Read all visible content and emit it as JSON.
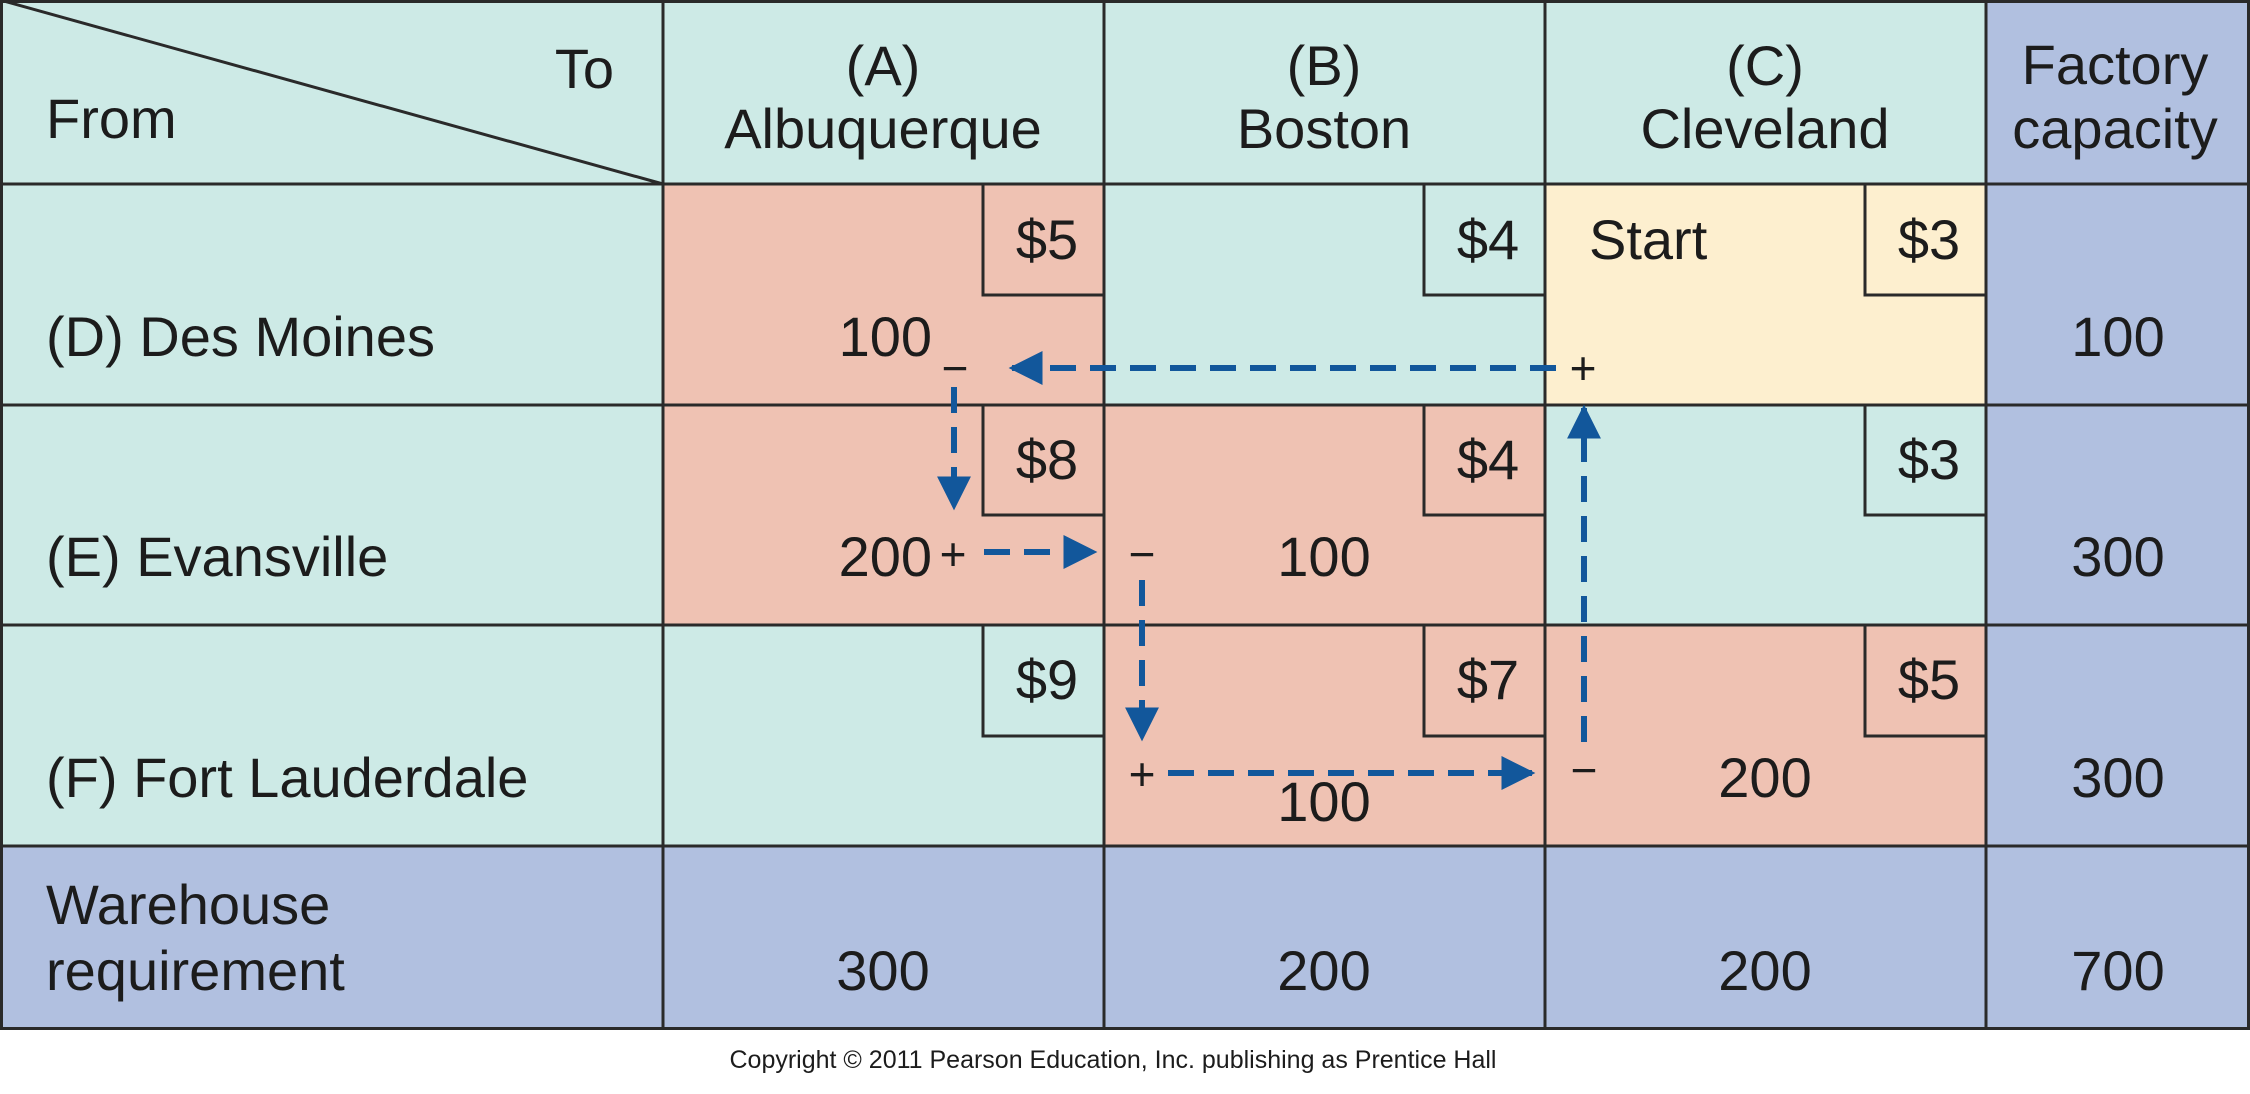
{
  "header": {
    "corner_to": "To",
    "corner_from": "From",
    "capacity_label": [
      "Factory",
      "capacity"
    ]
  },
  "columns": [
    {
      "code": "(A)",
      "name": "Albuquerque"
    },
    {
      "code": "(B)",
      "name": "Boston"
    },
    {
      "code": "(C)",
      "name": "Cleveland"
    }
  ],
  "rows": [
    {
      "label": "(D) Des Moines",
      "capacity": "100",
      "cells": [
        {
          "cost": "$5",
          "amount": "100",
          "sign": "−",
          "fill": "#efc2b3"
        },
        {
          "cost": "$4",
          "amount": "",
          "sign": "",
          "fill": "#cdeae6"
        },
        {
          "cost": "$3",
          "amount": "",
          "sign": "+",
          "fill": "#fdefcf",
          "note": "Start"
        }
      ]
    },
    {
      "label": "(E) Evansville",
      "capacity": "300",
      "cells": [
        {
          "cost": "$8",
          "amount": "200",
          "sign": "+",
          "fill": "#efc2b3"
        },
        {
          "cost": "$4",
          "amount": "100",
          "sign": "−",
          "fill": "#efc2b3"
        },
        {
          "cost": "$3",
          "amount": "",
          "sign": "",
          "fill": "#cdeae6"
        }
      ]
    },
    {
      "label": "(F) Fort Lauderdale",
      "capacity": "300",
      "cells": [
        {
          "cost": "$9",
          "amount": "",
          "sign": "",
          "fill": "#cdeae6"
        },
        {
          "cost": "$7",
          "amount": "100",
          "sign": "+",
          "fill": "#efc2b3"
        },
        {
          "cost": "$5",
          "amount": "200",
          "sign": "−",
          "fill": "#efc2b3"
        }
      ]
    }
  ],
  "requirement": {
    "label": [
      "Warehouse",
      "requirement"
    ],
    "values": [
      "300",
      "200",
      "200"
    ],
    "total": "700"
  },
  "copyright": "Copyright © 2011 Pearson Education, Inc. publishing as Prentice Hall",
  "colors": {
    "mint": "#cdeae6",
    "salmon": "#efc2b3",
    "cream": "#fdefcf",
    "periwinkle": "#b1c0e0",
    "arrow": "#12579b",
    "border": "#2a2a2a"
  },
  "stepping_stone_path": [
    "Cleveland–Des Moines",
    "Albuquerque–Des Moines",
    "Albuquerque–Evansville",
    "Boston–Evansville",
    "Boston–Fort Lauderdale",
    "Cleveland–Fort Lauderdale"
  ]
}
